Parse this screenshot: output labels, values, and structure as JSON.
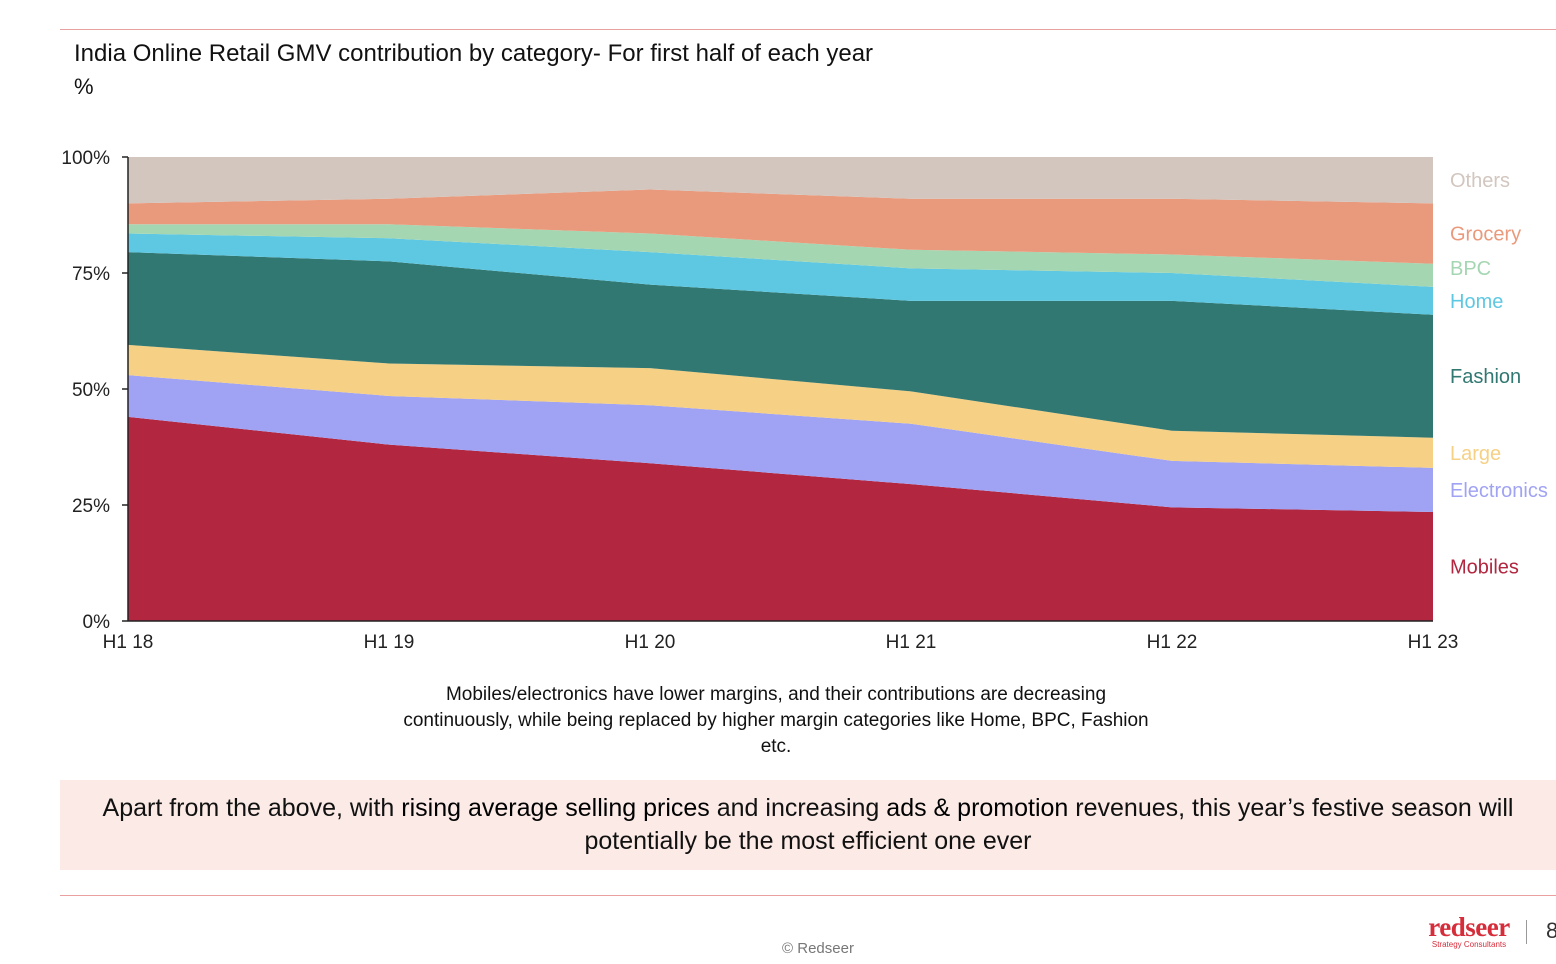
{
  "chart_data": {
    "type": "area",
    "stacked": true,
    "title": "India Online Retail GMV contribution by category- For first half of each year",
    "unit_label": "%",
    "categories": [
      "H1 18",
      "H1 19",
      "H1 20",
      "H1 21",
      "H1 22",
      "H1 23"
    ],
    "ylim": [
      0,
      100
    ],
    "yticks": [
      {
        "value": 0,
        "label": "0%"
      },
      {
        "value": 25,
        "label": "25%"
      },
      {
        "value": 50,
        "label": "50%"
      },
      {
        "value": 75,
        "label": "75%"
      },
      {
        "value": 100,
        "label": "100%"
      }
    ],
    "legend_position": "right",
    "series": [
      {
        "name": "Mobiles",
        "color": "#b22640",
        "values": [
          44,
          38,
          34,
          29.5,
          24.5,
          23.5
        ]
      },
      {
        "name": "Electronics",
        "color": "#a0a3f3",
        "values": [
          9,
          10.5,
          12.5,
          13,
          10,
          9.5
        ]
      },
      {
        "name": "Large",
        "color": "#f6d084",
        "values": [
          6.5,
          7,
          8,
          7,
          6.5,
          6.5
        ]
      },
      {
        "name": "Fashion",
        "color": "#327872",
        "values": [
          20,
          22,
          18,
          19.5,
          28,
          26.5
        ]
      },
      {
        "name": "Home",
        "color": "#5ec8e2",
        "values": [
          4,
          5,
          7,
          7,
          6,
          6
        ]
      },
      {
        "name": "BPC",
        "color": "#a5d6b2",
        "values": [
          2,
          3,
          4,
          4,
          4,
          5
        ]
      },
      {
        "name": "Grocery",
        "color": "#ea9a7c",
        "values": [
          4.5,
          5.5,
          9.5,
          11,
          12,
          13
        ]
      },
      {
        "name": "Others",
        "color": "#d2c6bf",
        "values": [
          10,
          9,
          7,
          9,
          9,
          10
        ]
      }
    ]
  },
  "caption": "Mobiles/electronics have lower margins, and their contributions are decreasing continuously, while being replaced by higher margin categories like Home, BPC, Fashion etc.",
  "callout": {
    "part1": "Apart from the above, with ",
    "highlight1": "rising average selling prices",
    "part2": " and increasing ",
    "highlight2": "ads & promotion",
    "part3": " revenues, this year’s festive season will potentially be the most efficient one ever"
  },
  "footer": {
    "copyright": "© Redseer",
    "logo_word": "redseer",
    "logo_subtitle": "Strategy Consultants",
    "page_number": "8"
  }
}
